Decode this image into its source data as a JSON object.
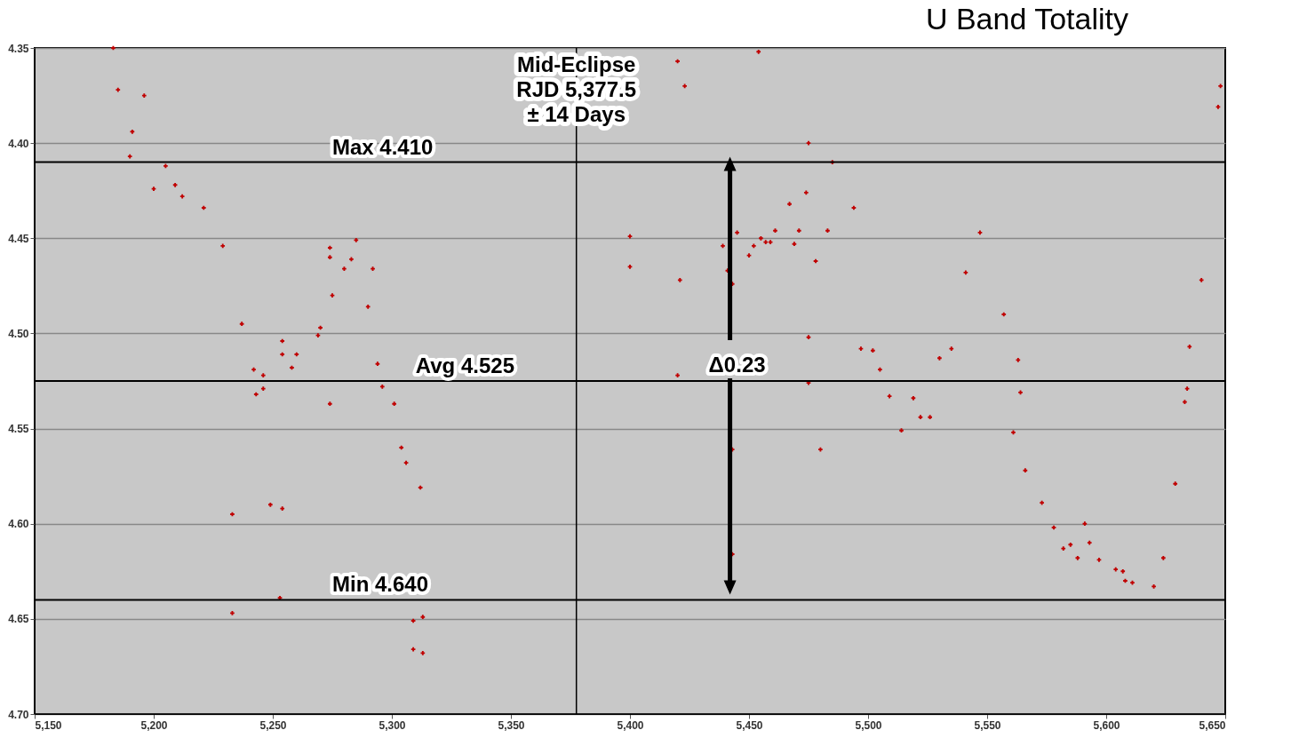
{
  "chart_data": {
    "type": "scatter",
    "title": "U Band Totality",
    "xlim": [
      5150,
      5650
    ],
    "ylim": [
      4.7,
      4.35
    ],
    "xticks": [
      {
        "value": 5150,
        "label": "5,150"
      },
      {
        "value": 5200,
        "label": "5,200"
      },
      {
        "value": 5250,
        "label": "5,250"
      },
      {
        "value": 5300,
        "label": "5,300"
      },
      {
        "value": 5350,
        "label": "5,350"
      },
      {
        "value": 5400,
        "label": "5,400"
      },
      {
        "value": 5450,
        "label": "5,450"
      },
      {
        "value": 5500,
        "label": "5,500"
      },
      {
        "value": 5550,
        "label": "5,550"
      },
      {
        "value": 5600,
        "label": "5,600"
      },
      {
        "value": 5650,
        "label": "5,650"
      }
    ],
    "yticks": [
      {
        "value": 4.35,
        "label": "4.35"
      },
      {
        "value": 4.4,
        "label": "4.40"
      },
      {
        "value": 4.45,
        "label": "4.45"
      },
      {
        "value": 4.5,
        "label": "4.50"
      },
      {
        "value": 4.55,
        "label": "4.55"
      },
      {
        "value": 4.6,
        "label": "4.60"
      },
      {
        "value": 4.65,
        "label": "4.65"
      },
      {
        "value": 4.7,
        "label": "4.70"
      }
    ],
    "grid": "y",
    "marker": "cross",
    "series": [
      {
        "color": "#c00000",
        "x": [
          5183,
          5185,
          5196,
          5191,
          5190,
          5205,
          5200,
          5209,
          5212,
          5221,
          5229,
          5237,
          5242,
          5246,
          5243,
          5246,
          5254,
          5254,
          5260,
          5258,
          5269,
          5270,
          5274,
          5274,
          5275,
          5280,
          5283,
          5285,
          5290,
          5292,
          5294,
          5296,
          5274,
          5301,
          5304,
          5306,
          5312,
          5233,
          5249,
          5254,
          5233,
          5253,
          5309,
          5313,
          5309,
          5313,
          5420,
          5423,
          5454,
          5475,
          5485,
          5648,
          5647,
          5400,
          5400,
          5421,
          5439,
          5441,
          5443,
          5445,
          5450,
          5452,
          5455,
          5457,
          5459,
          5461,
          5467,
          5469,
          5471,
          5474,
          5478,
          5483,
          5494,
          5547,
          5541,
          5557,
          5640,
          5475,
          5497,
          5502,
          5535,
          5530,
          5563,
          5635,
          5420,
          5505,
          5475,
          5634,
          5633,
          5509,
          5519,
          5522,
          5526,
          5514,
          5564,
          5561,
          5443,
          5480,
          5566,
          5573,
          5578,
          5591,
          5582,
          5585,
          5593,
          5588,
          5597,
          5604,
          5607,
          5608,
          5611,
          5620,
          5624,
          5629,
          5443
        ],
        "values": [
          4.35,
          4.372,
          4.375,
          4.394,
          4.407,
          4.412,
          4.424,
          4.422,
          4.428,
          4.434,
          4.454,
          4.495,
          4.519,
          4.522,
          4.532,
          4.529,
          4.504,
          4.511,
          4.511,
          4.518,
          4.501,
          4.497,
          4.455,
          4.46,
          4.48,
          4.466,
          4.461,
          4.451,
          4.486,
          4.466,
          4.516,
          4.528,
          4.537,
          4.537,
          4.56,
          4.568,
          4.581,
          4.595,
          4.59,
          4.592,
          4.647,
          4.639,
          4.651,
          4.649,
          4.666,
          4.668,
          4.357,
          4.37,
          4.352,
          4.4,
          4.41,
          4.37,
          4.381,
          4.449,
          4.465,
          4.472,
          4.454,
          4.467,
          4.474,
          4.447,
          4.459,
          4.454,
          4.45,
          4.452,
          4.452,
          4.446,
          4.432,
          4.453,
          4.446,
          4.426,
          4.462,
          4.446,
          4.434,
          4.447,
          4.468,
          4.49,
          4.472,
          4.502,
          4.508,
          4.509,
          4.508,
          4.513,
          4.514,
          4.507,
          4.522,
          4.519,
          4.526,
          4.529,
          4.536,
          4.533,
          4.534,
          4.544,
          4.544,
          4.551,
          4.531,
          4.552,
          4.561,
          4.561,
          4.572,
          4.589,
          4.602,
          4.6,
          4.613,
          4.611,
          4.61,
          4.618,
          4.619,
          4.624,
          4.625,
          4.63,
          4.631,
          4.633,
          4.618,
          4.579,
          4.616
        ]
      }
    ],
    "ref_lines": [
      {
        "axis": "y",
        "value": 4.41,
        "label": "Max 4.410",
        "color": "#000000"
      },
      {
        "axis": "y",
        "value": 4.525,
        "label": "Avg 4.525",
        "color": "#000000"
      },
      {
        "axis": "y",
        "value": 4.64,
        "label": "Min 4.640",
        "color": "#000000"
      },
      {
        "axis": "x",
        "value": 5377.5,
        "label": "Mid-Eclipse\nRJD 5,377.5\n± 14 Days",
        "color": "#000000"
      }
    ],
    "annotations": [
      {
        "text": "Δ0.23",
        "x": 5445,
        "y": 4.525
      }
    ]
  }
}
